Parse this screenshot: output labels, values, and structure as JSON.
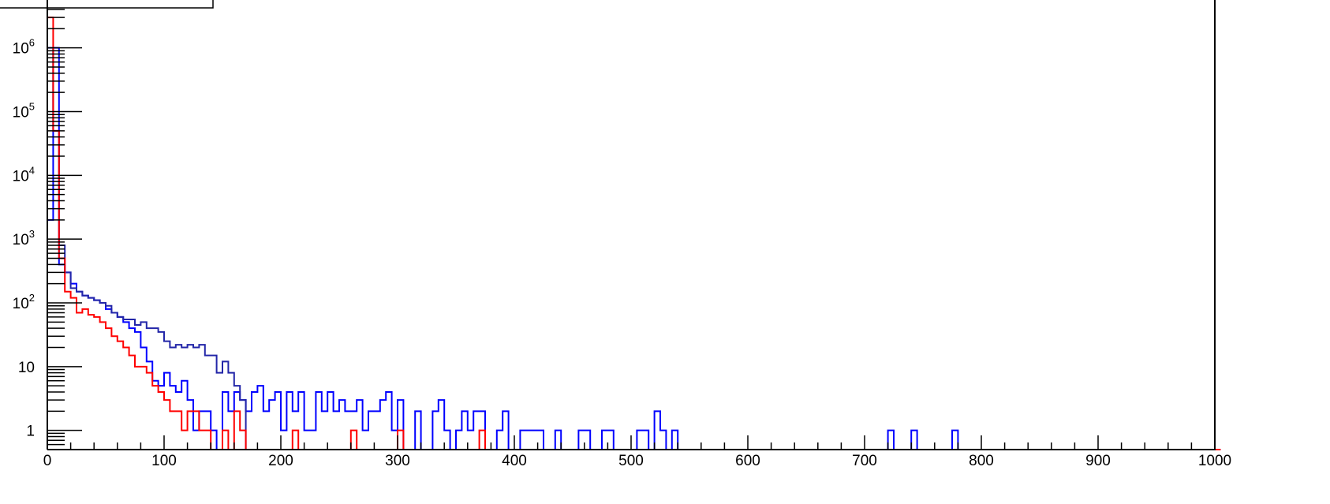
{
  "chart_data": {
    "type": "histogram",
    "x_range": [
      0,
      1000
    ],
    "y_scale": "log",
    "y_range": [
      0.5,
      4000000
    ],
    "bin_width": 5,
    "grid": false,
    "x_tick_labels": [
      "0",
      "100",
      "200",
      "300",
      "400",
      "500",
      "600",
      "700",
      "800",
      "900",
      "1000"
    ],
    "y_tick_labels": [
      {
        "base": "1",
        "exp": ""
      },
      {
        "base": "10",
        "exp": ""
      },
      {
        "base": "10",
        "exp": "2"
      },
      {
        "base": "10",
        "exp": "3"
      },
      {
        "base": "10",
        "exp": "4"
      },
      {
        "base": "10",
        "exp": "5"
      },
      {
        "base": "10",
        "exp": "6"
      }
    ],
    "series": [
      {
        "color": "#1f2aa0",
        "points": [
          [
            0,
            0.5
          ],
          [
            5,
            0.5
          ]
        ]
      },
      {
        "color": "#0000ff",
        "points": [
          [
            0,
            2000
          ],
          [
            5,
            1000000
          ],
          [
            10,
            400
          ],
          [
            15,
            300
          ],
          [
            20,
            200
          ],
          [
            25,
            150
          ],
          [
            30,
            130
          ],
          [
            35,
            120
          ],
          [
            40,
            110
          ],
          [
            45,
            100
          ],
          [
            50,
            80
          ],
          [
            55,
            70
          ],
          [
            60,
            60
          ],
          [
            65,
            50
          ],
          [
            70,
            40
          ],
          [
            75,
            35
          ],
          [
            80,
            20
          ],
          [
            85,
            12
          ],
          [
            90,
            6
          ],
          [
            95,
            5
          ],
          [
            100,
            8
          ],
          [
            105,
            5
          ],
          [
            110,
            4
          ],
          [
            115,
            6
          ],
          [
            120,
            3
          ],
          [
            125,
            1
          ],
          [
            130,
            2
          ],
          [
            135,
            2
          ],
          [
            140,
            1
          ],
          [
            145,
            0.5
          ],
          [
            150,
            4
          ],
          [
            155,
            2
          ],
          [
            160,
            4
          ],
          [
            165,
            3
          ],
          [
            170,
            2
          ],
          [
            175,
            4
          ],
          [
            180,
            5
          ],
          [
            185,
            2
          ],
          [
            190,
            3
          ],
          [
            195,
            4
          ],
          [
            200,
            1
          ],
          [
            205,
            4
          ],
          [
            210,
            2
          ],
          [
            215,
            4
          ],
          [
            220,
            1
          ],
          [
            225,
            1
          ],
          [
            230,
            4
          ],
          [
            235,
            2
          ],
          [
            240,
            4
          ],
          [
            245,
            2
          ],
          [
            250,
            3
          ],
          [
            255,
            2
          ],
          [
            260,
            2
          ],
          [
            265,
            3
          ],
          [
            270,
            1
          ],
          [
            275,
            2
          ],
          [
            280,
            2
          ],
          [
            285,
            3
          ],
          [
            290,
            4
          ],
          [
            295,
            1
          ],
          [
            300,
            3
          ],
          [
            305,
            0.5
          ],
          [
            310,
            0.5
          ],
          [
            315,
            2
          ],
          [
            320,
            0.5
          ],
          [
            325,
            0.5
          ],
          [
            330,
            2
          ],
          [
            335,
            3
          ],
          [
            340,
            1
          ],
          [
            345,
            0.5
          ],
          [
            350,
            1
          ],
          [
            355,
            2
          ],
          [
            360,
            1
          ],
          [
            365,
            2
          ],
          [
            370,
            2
          ],
          [
            375,
            0.5
          ],
          [
            380,
            0.5
          ],
          [
            385,
            1
          ],
          [
            390,
            2
          ],
          [
            395,
            0.5
          ],
          [
            400,
            0.5
          ],
          [
            405,
            1
          ],
          [
            410,
            1
          ],
          [
            415,
            1
          ],
          [
            420,
            1
          ],
          [
            425,
            0.5
          ],
          [
            430,
            0.5
          ],
          [
            435,
            1
          ],
          [
            440,
            0.5
          ],
          [
            445,
            0.5
          ],
          [
            450,
            0.5
          ],
          [
            455,
            1
          ],
          [
            460,
            1
          ],
          [
            465,
            0.5
          ],
          [
            470,
            0.5
          ],
          [
            475,
            1
          ],
          [
            480,
            1
          ],
          [
            485,
            0.5
          ],
          [
            490,
            0.5
          ],
          [
            495,
            0.5
          ],
          [
            500,
            0.5
          ],
          [
            505,
            1
          ],
          [
            510,
            1
          ],
          [
            515,
            0.5
          ],
          [
            520,
            2
          ],
          [
            525,
            1
          ],
          [
            530,
            0.5
          ],
          [
            535,
            1
          ],
          [
            540,
            0.5
          ],
          [
            720,
            1
          ],
          [
            725,
            0.5
          ],
          [
            740,
            1
          ],
          [
            745,
            0.5
          ],
          [
            775,
            1
          ],
          [
            780,
            0.5
          ],
          [
            1000,
            0.5
          ]
        ]
      },
      {
        "color": "#2326a8",
        "points": [
          [
            0,
            1000000
          ],
          [
            5,
            50000
          ],
          [
            10,
            800
          ],
          [
            15,
            300
          ],
          [
            20,
            170
          ],
          [
            25,
            150
          ],
          [
            30,
            130
          ],
          [
            35,
            120
          ],
          [
            40,
            110
          ],
          [
            45,
            100
          ],
          [
            50,
            90
          ],
          [
            55,
            70
          ],
          [
            60,
            60
          ],
          [
            65,
            55
          ],
          [
            70,
            55
          ],
          [
            75,
            45
          ],
          [
            80,
            50
          ],
          [
            85,
            40
          ],
          [
            90,
            40
          ],
          [
            95,
            35
          ],
          [
            100,
            25
          ],
          [
            105,
            20
          ],
          [
            110,
            22
          ],
          [
            115,
            20
          ],
          [
            120,
            22
          ],
          [
            125,
            20
          ],
          [
            130,
            22
          ],
          [
            135,
            15
          ],
          [
            140,
            15
          ],
          [
            145,
            8
          ],
          [
            150,
            12
          ],
          [
            155,
            8
          ],
          [
            160,
            5
          ],
          [
            165,
            3
          ],
          [
            170,
            0.5
          ]
        ]
      },
      {
        "color": "#ff0000",
        "points": [
          [
            0,
            3000000
          ],
          [
            5,
            50000
          ],
          [
            10,
            500
          ],
          [
            15,
            150
          ],
          [
            20,
            120
          ],
          [
            25,
            70
          ],
          [
            30,
            80
          ],
          [
            35,
            65
          ],
          [
            40,
            60
          ],
          [
            45,
            50
          ],
          [
            50,
            40
          ],
          [
            55,
            30
          ],
          [
            60,
            25
          ],
          [
            65,
            20
          ],
          [
            70,
            15
          ],
          [
            75,
            10
          ],
          [
            80,
            10
          ],
          [
            85,
            8
          ],
          [
            90,
            5
          ],
          [
            95,
            4
          ],
          [
            100,
            3
          ],
          [
            105,
            2
          ],
          [
            110,
            2
          ],
          [
            115,
            1
          ],
          [
            120,
            2
          ],
          [
            125,
            2
          ],
          [
            130,
            1
          ],
          [
            135,
            1
          ],
          [
            140,
            0.5
          ],
          [
            145,
            0.5
          ],
          [
            150,
            1
          ],
          [
            155,
            0.5
          ],
          [
            160,
            2
          ],
          [
            165,
            1
          ],
          [
            170,
            0.5
          ],
          [
            175,
            0.5
          ],
          [
            180,
            0.5
          ],
          [
            185,
            0.5
          ],
          [
            190,
            0.5
          ],
          [
            195,
            0.5
          ],
          [
            200,
            0.5
          ],
          [
            210,
            1
          ],
          [
            215,
            0.5
          ],
          [
            260,
            1
          ],
          [
            265,
            0.5
          ],
          [
            300,
            1
          ],
          [
            305,
            0.5
          ],
          [
            370,
            1
          ],
          [
            375,
            0.5
          ],
          [
            1000,
            0.5
          ]
        ]
      }
    ]
  }
}
